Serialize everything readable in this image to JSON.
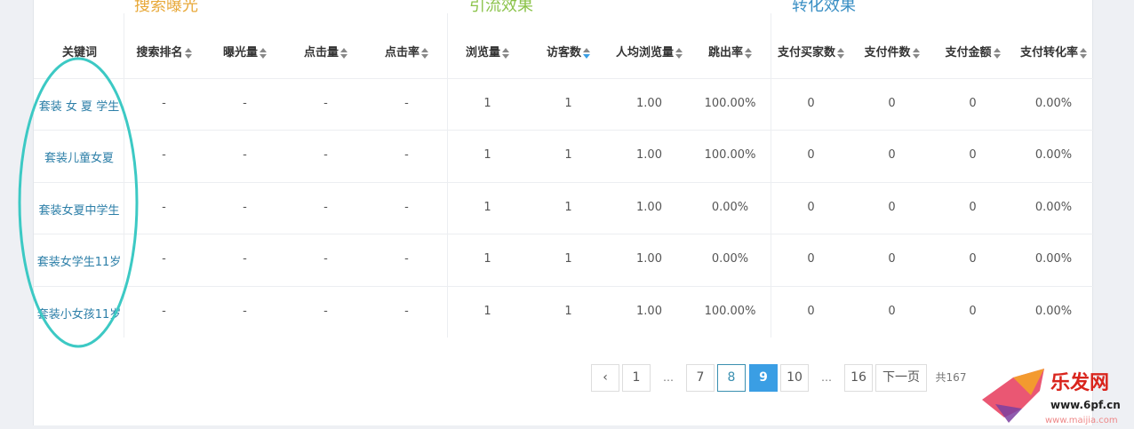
{
  "groups": [
    {
      "label": "搜索曝光",
      "color": "#e8a93a"
    },
    {
      "label": "引流效果",
      "color": "#8bc34a"
    },
    {
      "label": "转化效果",
      "color": "#3a8fc4"
    }
  ],
  "columns": [
    {
      "label": "关键词",
      "sortable": false
    },
    {
      "label": "搜索排名",
      "sortable": true
    },
    {
      "label": "曝光量",
      "sortable": true
    },
    {
      "label": "点击量",
      "sortable": true
    },
    {
      "label": "点击率",
      "sortable": true
    },
    {
      "label": "浏览量",
      "sortable": true
    },
    {
      "label": "访客数",
      "sortable": true,
      "active": true
    },
    {
      "label": "人均浏览量",
      "sortable": true
    },
    {
      "label": "跳出率",
      "sortable": true
    },
    {
      "label": "支付买家数",
      "sortable": true
    },
    {
      "label": "支付件数",
      "sortable": true
    },
    {
      "label": "支付金额",
      "sortable": true
    },
    {
      "label": "支付转化率",
      "sortable": true
    }
  ],
  "rows": [
    [
      "套装 女 夏 学生",
      "-",
      "-",
      "-",
      "-",
      "1",
      "1",
      "1.00",
      "100.00%",
      "0",
      "0",
      "0",
      "0.00%"
    ],
    [
      "套装儿童女夏",
      "-",
      "-",
      "-",
      "-",
      "1",
      "1",
      "1.00",
      "100.00%",
      "0",
      "0",
      "0",
      "0.00%"
    ],
    [
      "套装女夏中学生",
      "-",
      "-",
      "-",
      "-",
      "1",
      "1",
      "1.00",
      "0.00%",
      "0",
      "0",
      "0",
      "0.00%"
    ],
    [
      "套装女学生11岁",
      "-",
      "-",
      "-",
      "-",
      "1",
      "1",
      "1.00",
      "0.00%",
      "0",
      "0",
      "0",
      "0.00%"
    ],
    [
      "套装小女孩11岁",
      "-",
      "-",
      "-",
      "-",
      "1",
      "1",
      "1.00",
      "100.00%",
      "0",
      "0",
      "0",
      "0.00%"
    ]
  ],
  "pagination": {
    "prev": "‹",
    "pages": [
      "1",
      "…",
      "7",
      "8",
      "9",
      "10",
      "…",
      "16"
    ],
    "current": "9",
    "next": "下一页",
    "total": "共167"
  },
  "watermark": {
    "brand": "乐发网",
    "url": "www.6pf.cn",
    "sub": "www.maijia.com"
  },
  "annotation_color": "#3cc9c4"
}
